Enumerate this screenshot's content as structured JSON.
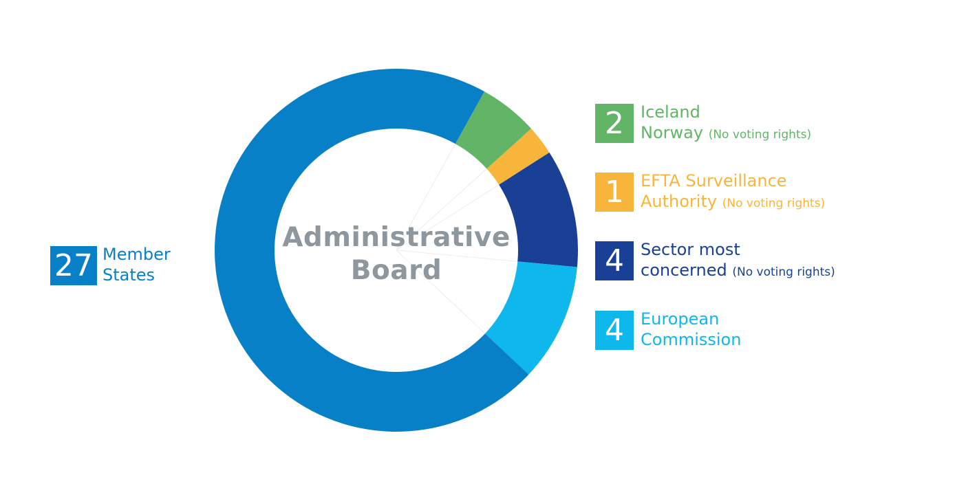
{
  "chart_data": {
    "type": "pie",
    "center_label": [
      "Administrative",
      "Board"
    ],
    "slices": [
      {
        "value": 27,
        "count_label": "27",
        "label_lines": [
          "Member",
          "States"
        ],
        "note": "",
        "color": "#0880c8"
      },
      {
        "value": 2,
        "count_label": "2",
        "label_lines": [
          "Iceland",
          "Norway"
        ],
        "note": "(No voting rights)",
        "color": "#62b566"
      },
      {
        "value": 1,
        "count_label": "1",
        "label_lines": [
          "EFTA Surveillance",
          "Authority"
        ],
        "note": "(No voting rights)",
        "color": "#f7b53b"
      },
      {
        "value": 4,
        "count_label": "4",
        "label_lines": [
          "Sector most",
          "concerned"
        ],
        "note": "(No voting rights)",
        "color": "#1a4096"
      },
      {
        "value": 4,
        "count_label": "4",
        "label_lines": [
          "European",
          "Commission"
        ],
        "note": "",
        "color": "#0eb8ed"
      }
    ],
    "legend": "sides"
  }
}
